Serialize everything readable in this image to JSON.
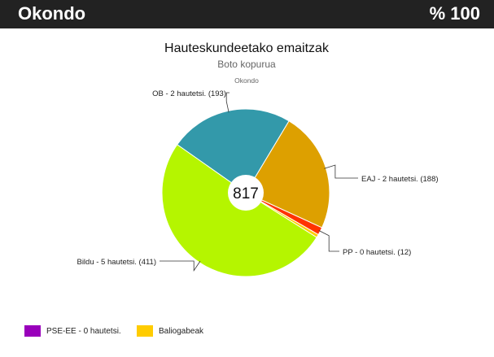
{
  "header": {
    "title": "Okondo",
    "percent": "% 100"
  },
  "chart_data": {
    "type": "pie",
    "title": "Hauteskundeetako emaitzak",
    "subtitle": "Boto kopurua",
    "caption": "Okondo",
    "center_label": "817",
    "start_angle_deg": -59,
    "slices": [
      {
        "name": "EAJ",
        "label": "EAJ - 2 hautetsi. (188)",
        "value": 188,
        "color": "#dda000"
      },
      {
        "name": "PP",
        "label": "PP - 0 hautetsi. (12)",
        "value": 12,
        "color": "#ff3300"
      },
      {
        "name": "Baliogabeak",
        "label": "",
        "value": 5,
        "color": "#ffcc00"
      },
      {
        "name": "Bildu",
        "label": "Bildu - 5 hautetsi. (411)",
        "value": 411,
        "color": "#b5f500"
      },
      {
        "name": "OB",
        "label": "OB - 2 hautetsi. (193)",
        "value": 193,
        "color": "#3399aa"
      }
    ],
    "legend": [
      {
        "label": "PSE-EE - 0 hautetsi.",
        "color": "#9900bb"
      },
      {
        "label": "Baliogabeak",
        "color": "#ffcc00"
      }
    ]
  }
}
